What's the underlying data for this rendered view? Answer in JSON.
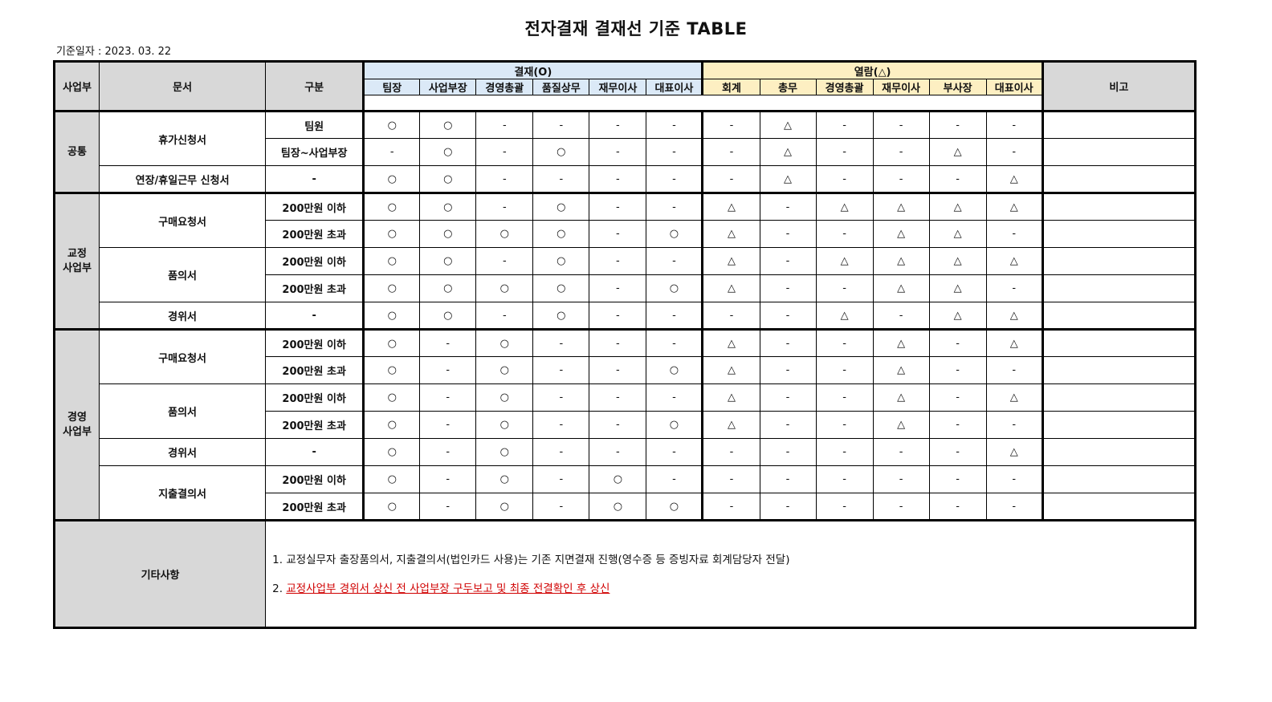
{
  "title": "전자결재 결재선 기준 TABLE",
  "date_label": "기준일자 : 2023. 03. 22",
  "headers": {
    "division": "사업부",
    "document": "문서",
    "category": "구분",
    "approval_group": "결재(O)",
    "view_group": "열람(△)",
    "remarks": "비고",
    "approval_roles": [
      "팀장",
      "사업부장",
      "경영총괄",
      "품질상무",
      "재무이사",
      "대표이사"
    ],
    "view_roles": [
      "회계",
      "총무",
      "경영총괄",
      "재무이사",
      "부사장",
      "대표이사"
    ]
  },
  "sections": [
    {
      "division": "공통",
      "documents": [
        {
          "name": "휴가신청서",
          "rows": [
            {
              "category": "팀원",
              "marks": [
                "○",
                "○",
                "-",
                "-",
                "-",
                "-",
                "-",
                "△",
                "-",
                "-",
                "-",
                "-"
              ]
            },
            {
              "category": "팀장~사업부장",
              "marks": [
                "-",
                "○",
                "-",
                "○",
                "-",
                "-",
                "-",
                "△",
                "-",
                "-",
                "△",
                "-"
              ]
            }
          ]
        },
        {
          "name": "연장/휴일근무 신청서",
          "rows": [
            {
              "category": "-",
              "marks": [
                "○",
                "○",
                "-",
                "-",
                "-",
                "-",
                "-",
                "△",
                "-",
                "-",
                "-",
                "△"
              ]
            }
          ]
        }
      ]
    },
    {
      "division": "교정\n사업부",
      "documents": [
        {
          "name": "구매요청서",
          "rows": [
            {
              "category": "200만원 이하",
              "marks": [
                "○",
                "○",
                "-",
                "○",
                "-",
                "-",
                "△",
                "-",
                "△",
                "△",
                "△",
                "△"
              ]
            },
            {
              "category": "200만원 초과",
              "marks": [
                "○",
                "○",
                "○",
                "○",
                "-",
                "○",
                "△",
                "-",
                "-",
                "△",
                "△",
                "-"
              ]
            }
          ]
        },
        {
          "name": "품의서",
          "rows": [
            {
              "category": "200만원 이하",
              "marks": [
                "○",
                "○",
                "-",
                "○",
                "-",
                "-",
                "△",
                "-",
                "△",
                "△",
                "△",
                "△"
              ]
            },
            {
              "category": "200만원 초과",
              "marks": [
                "○",
                "○",
                "○",
                "○",
                "-",
                "○",
                "△",
                "-",
                "-",
                "△",
                "△",
                "-"
              ]
            }
          ]
        },
        {
          "name": "경위서",
          "rows": [
            {
              "category": "-",
              "marks": [
                "○",
                "○",
                "-",
                "○",
                "-",
                "-",
                "-",
                "-",
                "△",
                "-",
                "△",
                "△"
              ]
            }
          ]
        }
      ]
    },
    {
      "division": "경영\n사업부",
      "documents": [
        {
          "name": "구매요청서",
          "rows": [
            {
              "category": "200만원 이하",
              "marks": [
                "○",
                "-",
                "○",
                "-",
                "-",
                "-",
                "△",
                "-",
                "-",
                "△",
                "-",
                "△"
              ]
            },
            {
              "category": "200만원 초과",
              "marks": [
                "○",
                "-",
                "○",
                "-",
                "-",
                "○",
                "△",
                "-",
                "-",
                "△",
                "-",
                "-"
              ]
            }
          ]
        },
        {
          "name": "품의서",
          "rows": [
            {
              "category": "200만원 이하",
              "marks": [
                "○",
                "-",
                "○",
                "-",
                "-",
                "-",
                "△",
                "-",
                "-",
                "△",
                "-",
                "△"
              ]
            },
            {
              "category": "200만원 초과",
              "marks": [
                "○",
                "-",
                "○",
                "-",
                "-",
                "○",
                "△",
                "-",
                "-",
                "△",
                "-",
                "-"
              ]
            }
          ]
        },
        {
          "name": "경위서",
          "rows": [
            {
              "category": "-",
              "marks": [
                "○",
                "-",
                "○",
                "-",
                "-",
                "-",
                "-",
                "-",
                "-",
                "-",
                "-",
                "△"
              ]
            }
          ]
        },
        {
          "name": "지출결의서",
          "rows": [
            {
              "category": "200만원 이하",
              "marks": [
                "○",
                "-",
                "○",
                "-",
                "○",
                "-",
                "-",
                "-",
                "-",
                "-",
                "-",
                "-"
              ]
            },
            {
              "category": "200만원 초과",
              "marks": [
                "○",
                "-",
                "○",
                "-",
                "○",
                "○",
                "-",
                "-",
                "-",
                "-",
                "-",
                "-"
              ]
            }
          ]
        }
      ]
    }
  ],
  "notes": {
    "label": "기타사항",
    "items": [
      {
        "number": "1.",
        "text": "교정실무자 출장품의서, 지출결의서(법인카드 사용)는 기존 지면결재 진행(영수증 등 증빙자료 회계담당자 전달)",
        "highlight": false
      },
      {
        "number": "2.",
        "text": "교정사업부 경위서 상신 전 사업부장 구두보고 및 최종 전결확인 후 상신",
        "highlight": true
      }
    ]
  },
  "colors": {
    "header_gray": "#d8d8d8",
    "approval_blue": "#dbe9f7",
    "view_yellow": "#fdefc2",
    "highlight_red": "#d00000"
  }
}
